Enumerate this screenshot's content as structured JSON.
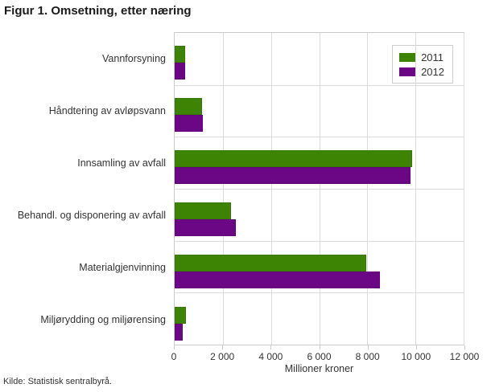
{
  "title": "Figur 1. Omsetning, etter næring",
  "source": "Kilde: Statistisk sentralbyrå.",
  "colors": {
    "series_2011": "#3E8404",
    "series_2012": "#6B0685",
    "grid": "#dcdcdc",
    "border": "#c9c9c9",
    "text": "#333333"
  },
  "chart_data": {
    "type": "bar",
    "orientation": "horizontal",
    "title": "Figur 1. Omsetning, etter næring",
    "xlabel": "Millioner kroner",
    "ylabel": "",
    "xlim": [
      0,
      12000
    ],
    "xticks": [
      0,
      2000,
      4000,
      6000,
      8000,
      10000,
      12000
    ],
    "xtick_labels": [
      "0",
      "2 000",
      "4 000",
      "6 000",
      "8 000",
      "10 000",
      "12 000"
    ],
    "grid": true,
    "legend_position": "top-right",
    "categories": [
      "Vannforsyning",
      "Håndtering av avløpsvann",
      "Innsamling av avfall",
      "Behandl. og disponering av avfall",
      "Materialgjenvinning",
      "Miljørydding og miljørensing"
    ],
    "series": [
      {
        "name": "2011",
        "color": "#3E8404",
        "values": [
          450,
          1120,
          9860,
          2350,
          7950,
          460
        ]
      },
      {
        "name": "2012",
        "color": "#6B0685",
        "values": [
          430,
          1170,
          9780,
          2550,
          8520,
          330
        ]
      }
    ]
  }
}
